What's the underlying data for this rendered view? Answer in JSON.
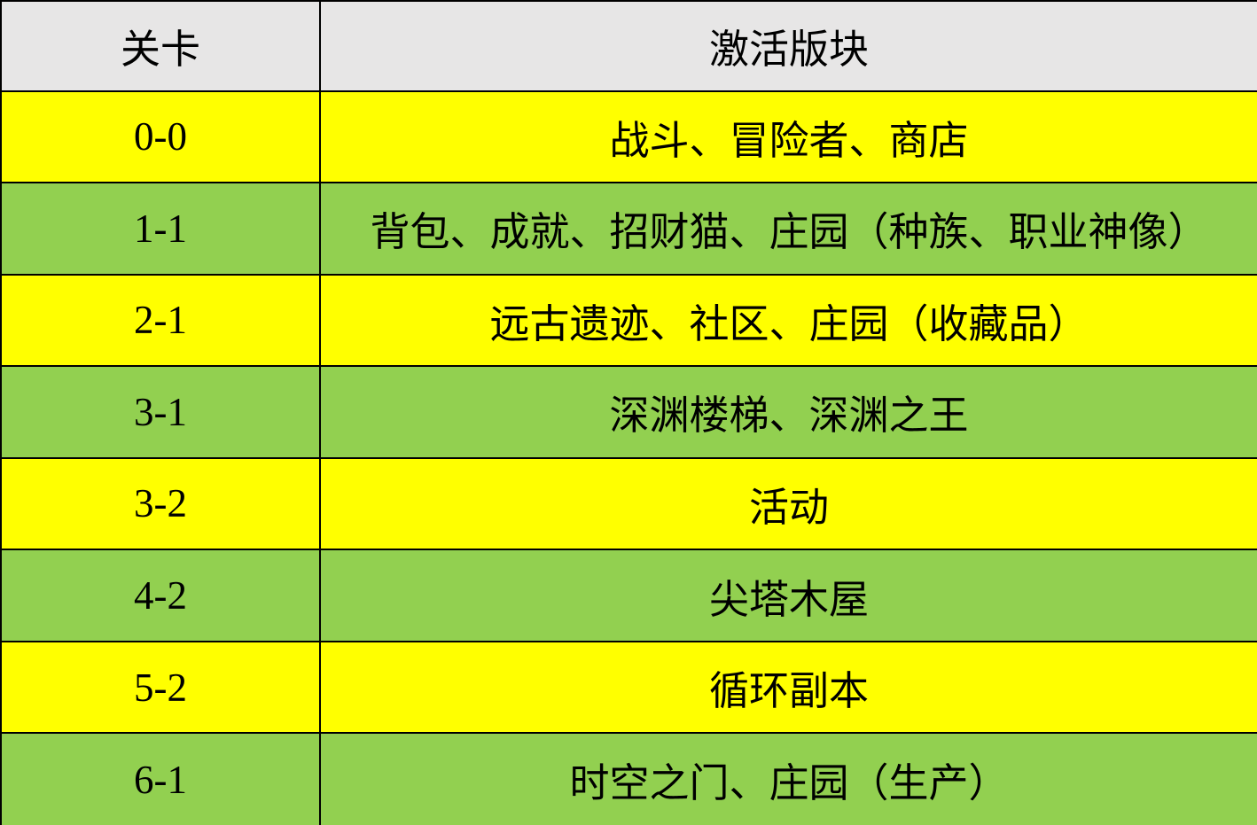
{
  "table": {
    "columns": {
      "level_header": "关卡",
      "modules_header": "激活版块"
    },
    "rows": [
      {
        "level": "0-0",
        "modules": "战斗、冒险者、商店",
        "bg": "#FFFF00"
      },
      {
        "level": "1-1",
        "modules": "背包、成就、招财猫、庄园（种族、职业神像）",
        "bg": "#92D050"
      },
      {
        "level": "2-1",
        "modules": "远古遗迹、社区、庄园（收藏品）",
        "bg": "#FFFF00"
      },
      {
        "level": "3-1",
        "modules": "深渊楼梯、深渊之王",
        "bg": "#92D050"
      },
      {
        "level": "3-2",
        "modules": "活动",
        "bg": "#FFFF00"
      },
      {
        "level": "4-2",
        "modules": "尖塔木屋",
        "bg": "#92D050"
      },
      {
        "level": "5-2",
        "modules": "循环副本",
        "bg": "#FFFF00"
      },
      {
        "level": "6-1",
        "modules": "时空之门、庄园（生产）",
        "bg": "#92D050"
      }
    ],
    "colors": {
      "header_bg": "#E7E6E6",
      "yellow_row": "#FFFF00",
      "green_row": "#92D050",
      "border": "#000000",
      "text": "#000000"
    }
  }
}
